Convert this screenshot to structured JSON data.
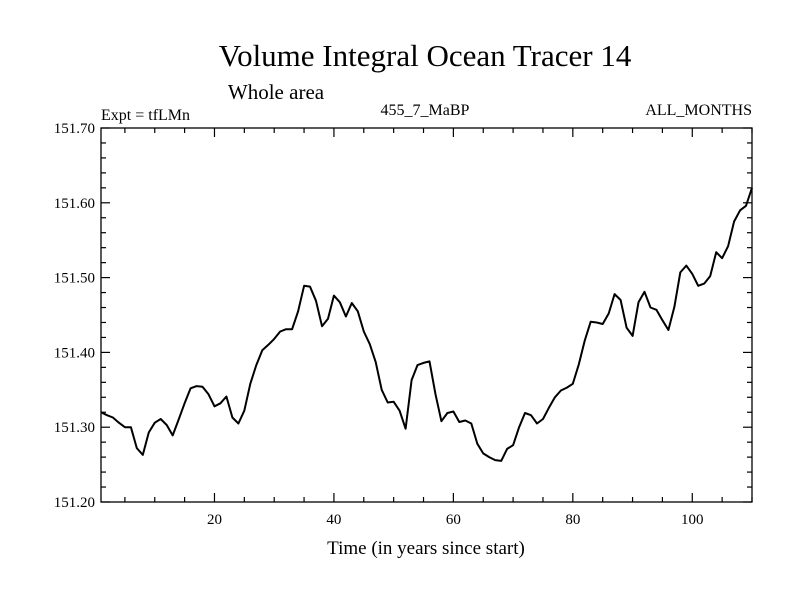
{
  "chart_data": {
    "type": "line",
    "title": "Volume Integral Ocean Tracer 14",
    "subtitle": "Whole area",
    "left_label": "Expt = tfLMn",
    "center_label": "455_7_MaBP",
    "right_label": "ALL_MONTHS",
    "xlabel": "Time (in years since start)",
    "ylabel": "",
    "xlim": [
      1,
      110
    ],
    "ylim": [
      151.2,
      151.7
    ],
    "x_ticks": [
      20,
      40,
      60,
      80,
      100
    ],
    "x_tick_labels": [
      "20",
      "40",
      "60",
      "80",
      "100"
    ],
    "y_ticks": [
      151.2,
      151.3,
      151.4,
      151.5,
      151.6,
      151.7
    ],
    "y_tick_labels": [
      "151.20",
      "151.30",
      "151.40",
      "151.50",
      "151.60",
      "151.70"
    ],
    "series": [
      {
        "name": "tfLMn",
        "color": "#000000",
        "x": [
          1,
          2,
          3,
          4,
          5,
          6,
          7,
          8,
          9,
          10,
          11,
          12,
          13,
          14,
          15,
          16,
          17,
          18,
          19,
          20,
          21,
          22,
          23,
          24,
          25,
          26,
          27,
          28,
          29,
          30,
          31,
          32,
          33,
          34,
          35,
          36,
          37,
          38,
          39,
          40,
          41,
          42,
          43,
          44,
          45,
          46,
          47,
          48,
          49,
          50,
          51,
          52,
          53,
          54,
          55,
          56,
          57,
          58,
          59,
          60,
          61,
          62,
          63,
          64,
          65,
          66,
          67,
          68,
          69,
          70,
          71,
          72,
          73,
          74,
          75,
          76,
          77,
          78,
          79,
          80,
          81,
          82,
          83,
          84,
          85,
          86,
          87,
          88,
          89,
          90,
          91,
          92,
          93,
          94,
          95,
          96,
          97,
          98,
          99,
          100,
          101,
          102,
          103,
          104,
          105,
          106,
          107,
          108,
          109,
          110
        ],
        "y": [
          151.32,
          151.316,
          151.313,
          151.306,
          151.3,
          151.3,
          151.272,
          151.263,
          151.293,
          151.306,
          151.311,
          151.303,
          151.289,
          151.31,
          151.332,
          151.352,
          151.355,
          151.354,
          151.344,
          151.328,
          151.332,
          151.341,
          151.313,
          151.305,
          151.322,
          151.358,
          151.383,
          151.403,
          151.41,
          151.418,
          151.428,
          151.431,
          151.431,
          151.455,
          151.489,
          151.488,
          151.469,
          151.435,
          151.445,
          151.476,
          151.467,
          151.448,
          151.466,
          151.455,
          151.428,
          151.411,
          151.387,
          151.35,
          151.333,
          151.334,
          151.322,
          151.298,
          151.363,
          151.383,
          151.386,
          151.388,
          151.344,
          151.308,
          151.319,
          151.321,
          151.307,
          151.309,
          151.305,
          151.278,
          151.265,
          151.26,
          151.256,
          151.255,
          151.271,
          151.276,
          151.3,
          151.319,
          151.316,
          151.305,
          151.311,
          151.326,
          151.34,
          151.349,
          151.353,
          151.358,
          151.384,
          151.416,
          151.441,
          151.44,
          151.438,
          151.452,
          151.478,
          151.47,
          151.433,
          151.422,
          151.467,
          151.481,
          151.46,
          151.457,
          151.443,
          151.43,
          151.461,
          151.507,
          151.516,
          151.505,
          151.489,
          151.492,
          151.502,
          151.534,
          151.526,
          151.542,
          151.575,
          151.59,
          151.596,
          151.62
        ]
      }
    ]
  }
}
